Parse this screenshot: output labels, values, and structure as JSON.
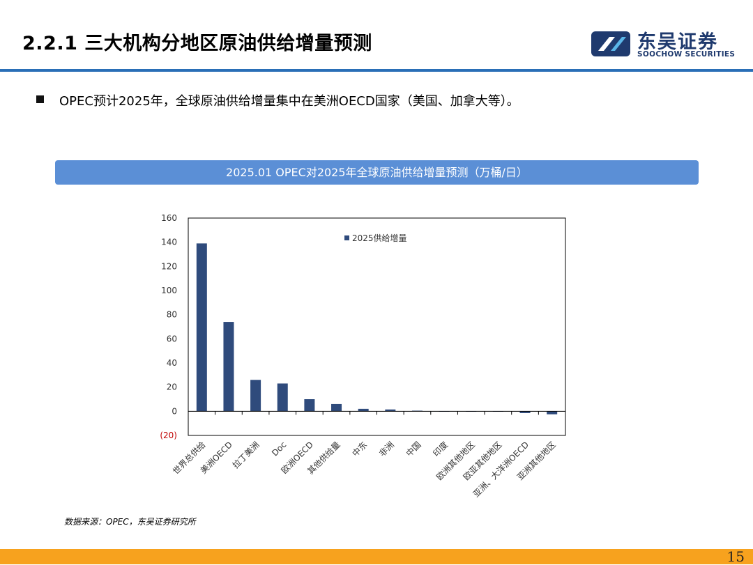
{
  "header": {
    "title": "2.2.1 三大机构分地区原油供给增量预测",
    "logo_name": "东吴证券",
    "logo_sub": "SOOCHOW SECURITIES"
  },
  "bullet": {
    "text": "OPEC预计2025年，全球原油供给增量集中在美洲OECD国家（美国、加拿大等）。"
  },
  "chart_banner": "2025.01 OPEC对2025年全球原油供给增量预测（万桶/日）",
  "source": "数据来源：OPEC，东吴证券研究所",
  "page_number": "15",
  "colors": {
    "bar": "#2f4b7c",
    "banner": "#5b8fd6",
    "header_line": "#2a6fb7",
    "footer": "#f7a21e",
    "negative_tick": "#c00000"
  },
  "chart_data": {
    "type": "bar",
    "categories": [
      "世界总供给",
      "美洲OECD",
      "拉丁美洲",
      "Doc",
      "欧洲OECD",
      "其他供给量",
      "中东",
      "非洲",
      "中国",
      "印度",
      "欧洲其他地区",
      "欧亚其他地区",
      "亚洲、大洋洲OECD",
      "亚洲其他地区"
    ],
    "series": [
      {
        "name": "2025供给增量",
        "values": [
          139,
          74,
          26,
          23,
          10,
          6,
          2,
          1.5,
          0.5,
          0,
          0,
          0,
          -1.5,
          -2.5
        ]
      }
    ],
    "ylim": [
      -20,
      160
    ],
    "yticks": [
      -20,
      0,
      20,
      40,
      60,
      80,
      100,
      120,
      140,
      160
    ],
    "ytick_labels": [
      "(20)",
      "0",
      "20",
      "40",
      "60",
      "80",
      "100",
      "120",
      "140",
      "160"
    ],
    "legend": "top-center",
    "grid": false
  }
}
